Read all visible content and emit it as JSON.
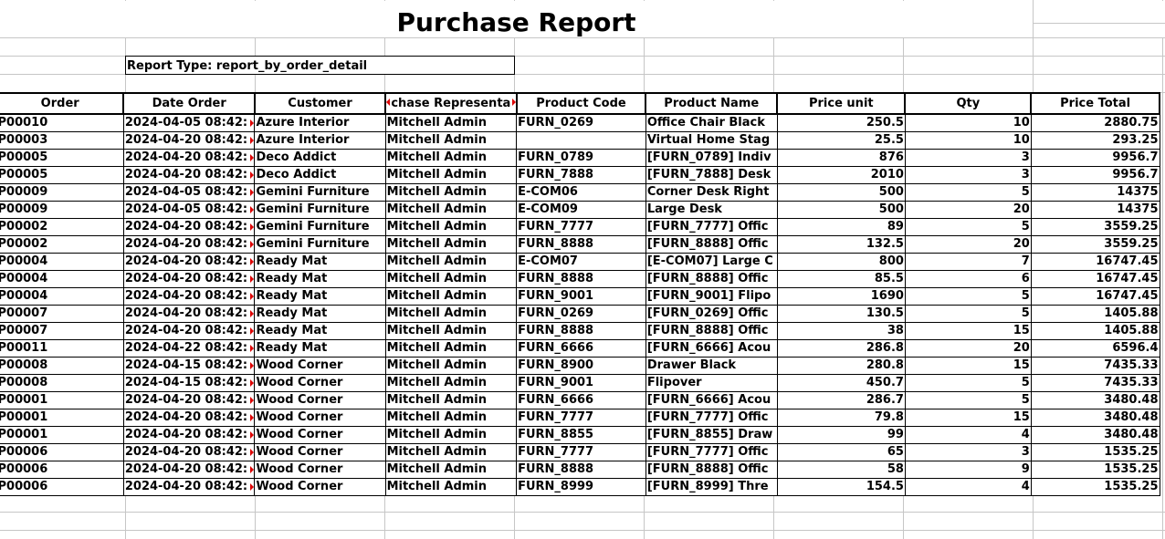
{
  "report": {
    "title": "Purchase Report",
    "report_type": "Report Type: report_by_order_detail"
  },
  "table": {
    "columns": [
      "Order",
      "Date Order",
      "Customer",
      "chase Representa",
      "Product Code",
      "Product Name",
      "Price unit",
      "Qty",
      "Price Total"
    ],
    "rows": [
      [
        "P00010",
        "2024-04-05 08:42:",
        "Azure Interior",
        "Mitchell Admin",
        "FURN_0269",
        "Office Chair Black",
        "250.5",
        "10",
        "2880.75"
      ],
      [
        "P00003",
        "2024-04-20 08:42:",
        "Azure Interior",
        "Mitchell Admin",
        "",
        "Virtual Home Stag",
        "25.5",
        "10",
        "293.25"
      ],
      [
        "P00005",
        "2024-04-20 08:42:",
        "Deco Addict",
        "Mitchell Admin",
        "FURN_0789",
        "[FURN_0789] Indiv",
        "876",
        "3",
        "9956.7"
      ],
      [
        "P00005",
        "2024-04-20 08:42:",
        "Deco Addict",
        "Mitchell Admin",
        "FURN_7888",
        "[FURN_7888] Desk",
        "2010",
        "3",
        "9956.7"
      ],
      [
        "P00009",
        "2024-04-05 08:42:",
        "Gemini Furniture",
        "Mitchell Admin",
        "E-COM06",
        "Corner Desk Right",
        "500",
        "5",
        "14375"
      ],
      [
        "P00009",
        "2024-04-05 08:42:",
        "Gemini Furniture",
        "Mitchell Admin",
        "E-COM09",
        "Large Desk",
        "500",
        "20",
        "14375"
      ],
      [
        "P00002",
        "2024-04-20 08:42:",
        "Gemini Furniture",
        "Mitchell Admin",
        "FURN_7777",
        "[FURN_7777] Offic",
        "89",
        "5",
        "3559.25"
      ],
      [
        "P00002",
        "2024-04-20 08:42:",
        "Gemini Furniture",
        "Mitchell Admin",
        "FURN_8888",
        "[FURN_8888] Offic",
        "132.5",
        "20",
        "3559.25"
      ],
      [
        "P00004",
        "2024-04-20 08:42:",
        "Ready Mat",
        "Mitchell Admin",
        "E-COM07",
        "[E-COM07] Large C",
        "800",
        "7",
        "16747.45"
      ],
      [
        "P00004",
        "2024-04-20 08:42:",
        "Ready Mat",
        "Mitchell Admin",
        "FURN_8888",
        "[FURN_8888] Offic",
        "85.5",
        "6",
        "16747.45"
      ],
      [
        "P00004",
        "2024-04-20 08:42:",
        "Ready Mat",
        "Mitchell Admin",
        "FURN_9001",
        "[FURN_9001] Flipo",
        "1690",
        "5",
        "16747.45"
      ],
      [
        "P00007",
        "2024-04-20 08:42:",
        "Ready Mat",
        "Mitchell Admin",
        "FURN_0269",
        "[FURN_0269] Offic",
        "130.5",
        "5",
        "1405.88"
      ],
      [
        "P00007",
        "2024-04-20 08:42:",
        "Ready Mat",
        "Mitchell Admin",
        "FURN_8888",
        "[FURN_8888] Offic",
        "38",
        "15",
        "1405.88"
      ],
      [
        "P00011",
        "2024-04-22 08:42:",
        "Ready Mat",
        "Mitchell Admin",
        "FURN_6666",
        "[FURN_6666] Acou",
        "286.8",
        "20",
        "6596.4"
      ],
      [
        "P00008",
        "2024-04-15 08:42:",
        "Wood Corner",
        "Mitchell Admin",
        "FURN_8900",
        "Drawer Black",
        "280.8",
        "15",
        "7435.33"
      ],
      [
        "P00008",
        "2024-04-15 08:42:",
        "Wood Corner",
        "Mitchell Admin",
        "FURN_9001",
        "Flipover",
        "450.7",
        "5",
        "7435.33"
      ],
      [
        "P00001",
        "2024-04-20 08:42:",
        "Wood Corner",
        "Mitchell Admin",
        "FURN_6666",
        "[FURN_6666] Acou",
        "286.7",
        "5",
        "3480.48"
      ],
      [
        "P00001",
        "2024-04-20 08:42:",
        "Wood Corner",
        "Mitchell Admin",
        "FURN_7777",
        "[FURN_7777] Offic",
        "79.8",
        "15",
        "3480.48"
      ],
      [
        "P00001",
        "2024-04-20 08:42:",
        "Wood Corner",
        "Mitchell Admin",
        "FURN_8855",
        "[FURN_8855] Draw",
        "99",
        "4",
        "3480.48"
      ],
      [
        "P00006",
        "2024-04-20 08:42:",
        "Wood Corner",
        "Mitchell Admin",
        "FURN_7777",
        "[FURN_7777] Offic",
        "65",
        "3",
        "1535.25"
      ],
      [
        "P00006",
        "2024-04-20 08:42:",
        "Wood Corner",
        "Mitchell Admin",
        "FURN_8888",
        "[FURN_8888] Offic",
        "58",
        "9",
        "1535.25"
      ],
      [
        "P00006",
        "2024-04-20 08:42:",
        "Wood Corner",
        "Mitchell Admin",
        "FURN_8999",
        "[FURN_8999] Thre",
        "154.5",
        "4",
        "1535.25"
      ]
    ]
  },
  "colors": {
    "grid": "#c6c6c6",
    "border": "#000000",
    "overflow_marker": "#dd0000"
  }
}
